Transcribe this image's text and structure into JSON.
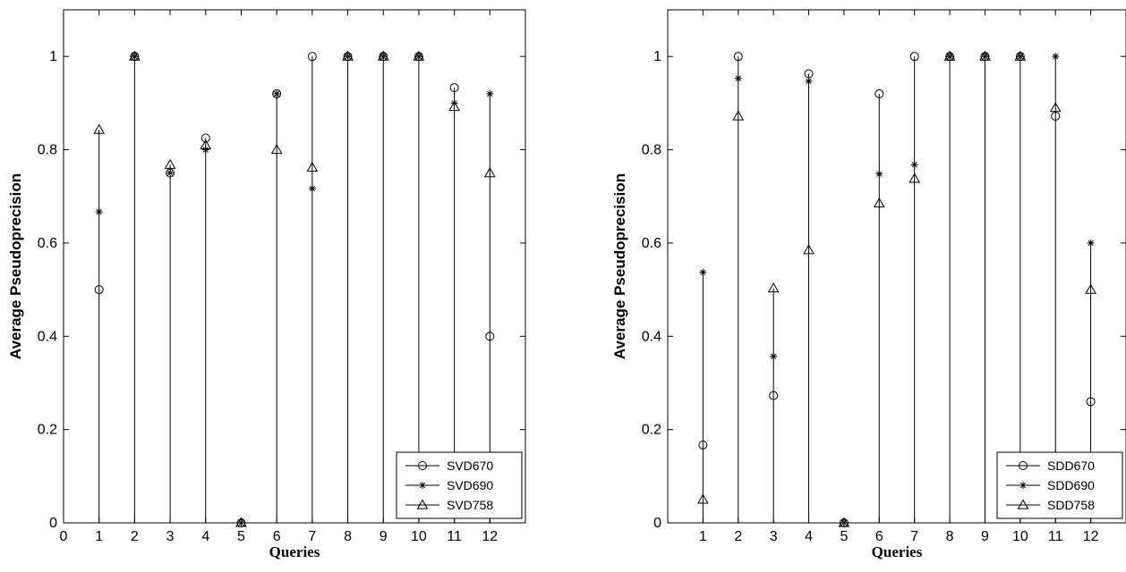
{
  "chart_data": [
    {
      "type": "stem",
      "xlabel": "Queries",
      "ylabel": "Average Pseudoprecision",
      "xlim": [
        0,
        13
      ],
      "ylim": [
        0,
        1.1
      ],
      "xticks": [
        "0",
        "1",
        "2",
        "3",
        "4",
        "5",
        "6",
        "7",
        "8",
        "9",
        "10",
        "11",
        "12"
      ],
      "yticks": [
        "0",
        "0.2",
        "0.4",
        "0.6",
        "0.8",
        "1"
      ],
      "legend_position": "bottom-right",
      "x": [
        1,
        2,
        3,
        4,
        5,
        6,
        7,
        8,
        9,
        10,
        11,
        12
      ],
      "series": [
        {
          "name": "SVD670",
          "marker": "circle",
          "values": [
            0.5,
            1.0,
            0.75,
            0.825,
            0.0,
            0.92,
            1.0,
            1.0,
            1.0,
            1.0,
            0.933,
            0.4
          ]
        },
        {
          "name": "SVD690",
          "marker": "star",
          "values": [
            0.667,
            1.0,
            0.75,
            0.8,
            0.0,
            0.92,
            0.717,
            1.0,
            1.0,
            1.0,
            0.9,
            0.92
          ]
        },
        {
          "name": "SVD758",
          "marker": "triangle",
          "values": [
            0.843,
            1.0,
            0.768,
            0.81,
            0.0,
            0.8,
            0.762,
            1.0,
            1.0,
            1.0,
            0.892,
            0.75
          ]
        }
      ]
    },
    {
      "type": "stem",
      "xlabel": "Queries",
      "ylabel": "Average Pseudoprecision",
      "xlim": [
        0,
        13
      ],
      "ylim": [
        0,
        1.1
      ],
      "xticks": [
        "1",
        "2",
        "3",
        "4",
        "5",
        "6",
        "7",
        "8",
        "9",
        "10",
        "11",
        "12"
      ],
      "yticks": [
        "0",
        "0.2",
        "0.4",
        "0.6",
        "0.8",
        "1"
      ],
      "legend_position": "bottom-right",
      "x": [
        1,
        2,
        3,
        4,
        5,
        6,
        7,
        8,
        9,
        10,
        11,
        12
      ],
      "series": [
        {
          "name": "SDD670",
          "marker": "circle",
          "values": [
            0.167,
            1.0,
            0.273,
            0.963,
            0.0,
            0.92,
            1.0,
            1.0,
            1.0,
            1.0,
            0.872,
            0.26
          ]
        },
        {
          "name": "SDD690",
          "marker": "star",
          "values": [
            0.537,
            0.953,
            0.357,
            0.947,
            0.0,
            0.748,
            0.768,
            1.0,
            1.0,
            1.0,
            1.0,
            0.6
          ]
        },
        {
          "name": "SDD758",
          "marker": "triangle",
          "values": [
            0.05,
            0.872,
            0.503,
            0.585,
            0.0,
            0.685,
            0.738,
            1.0,
            1.0,
            1.0,
            0.89,
            0.5
          ]
        }
      ]
    }
  ]
}
